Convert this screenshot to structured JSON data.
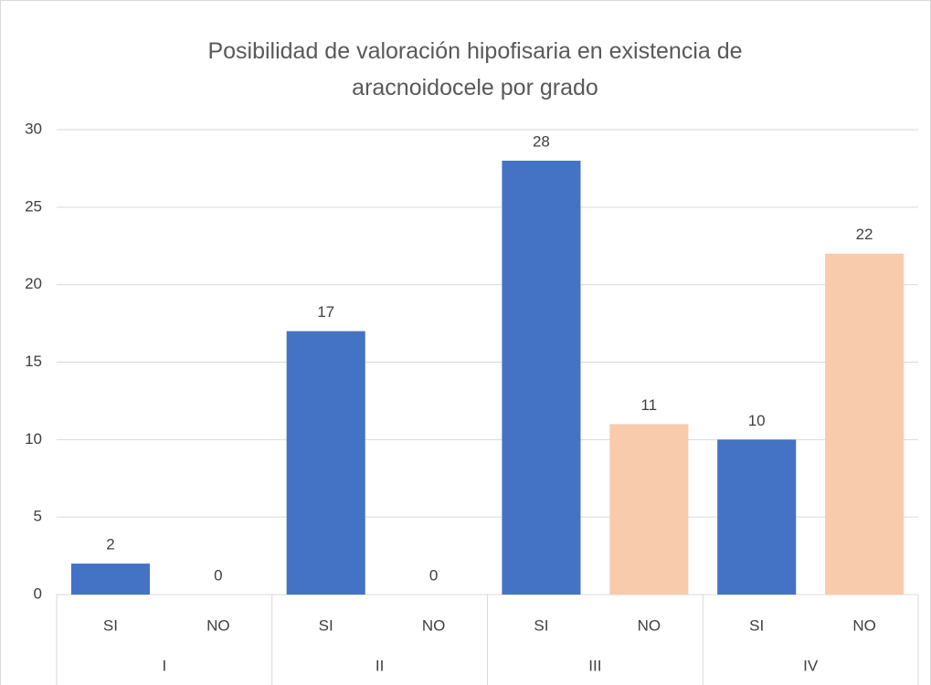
{
  "chart_data": {
    "type": "bar",
    "title": "Posibilidad de valoración hipofisaria en existencia de aracnoidocele por grado",
    "groups": [
      {
        "name": "I",
        "categories": [
          "SI",
          "NO"
        ],
        "values": [
          2,
          0
        ]
      },
      {
        "name": "II",
        "categories": [
          "SI",
          "NO"
        ],
        "values": [
          17,
          0
        ]
      },
      {
        "name": "III",
        "categories": [
          "SI",
          "NO"
        ],
        "values": [
          28,
          11
        ]
      },
      {
        "name": "IV",
        "categories": [
          "SI",
          "NO"
        ],
        "values": [
          10,
          22
        ]
      }
    ],
    "colors": [
      "#4472c4",
      "#f8cbad"
    ],
    "ylim": [
      0,
      30
    ],
    "yticks": [
      0,
      5,
      10,
      15,
      20,
      25,
      30
    ],
    "grid": true
  }
}
